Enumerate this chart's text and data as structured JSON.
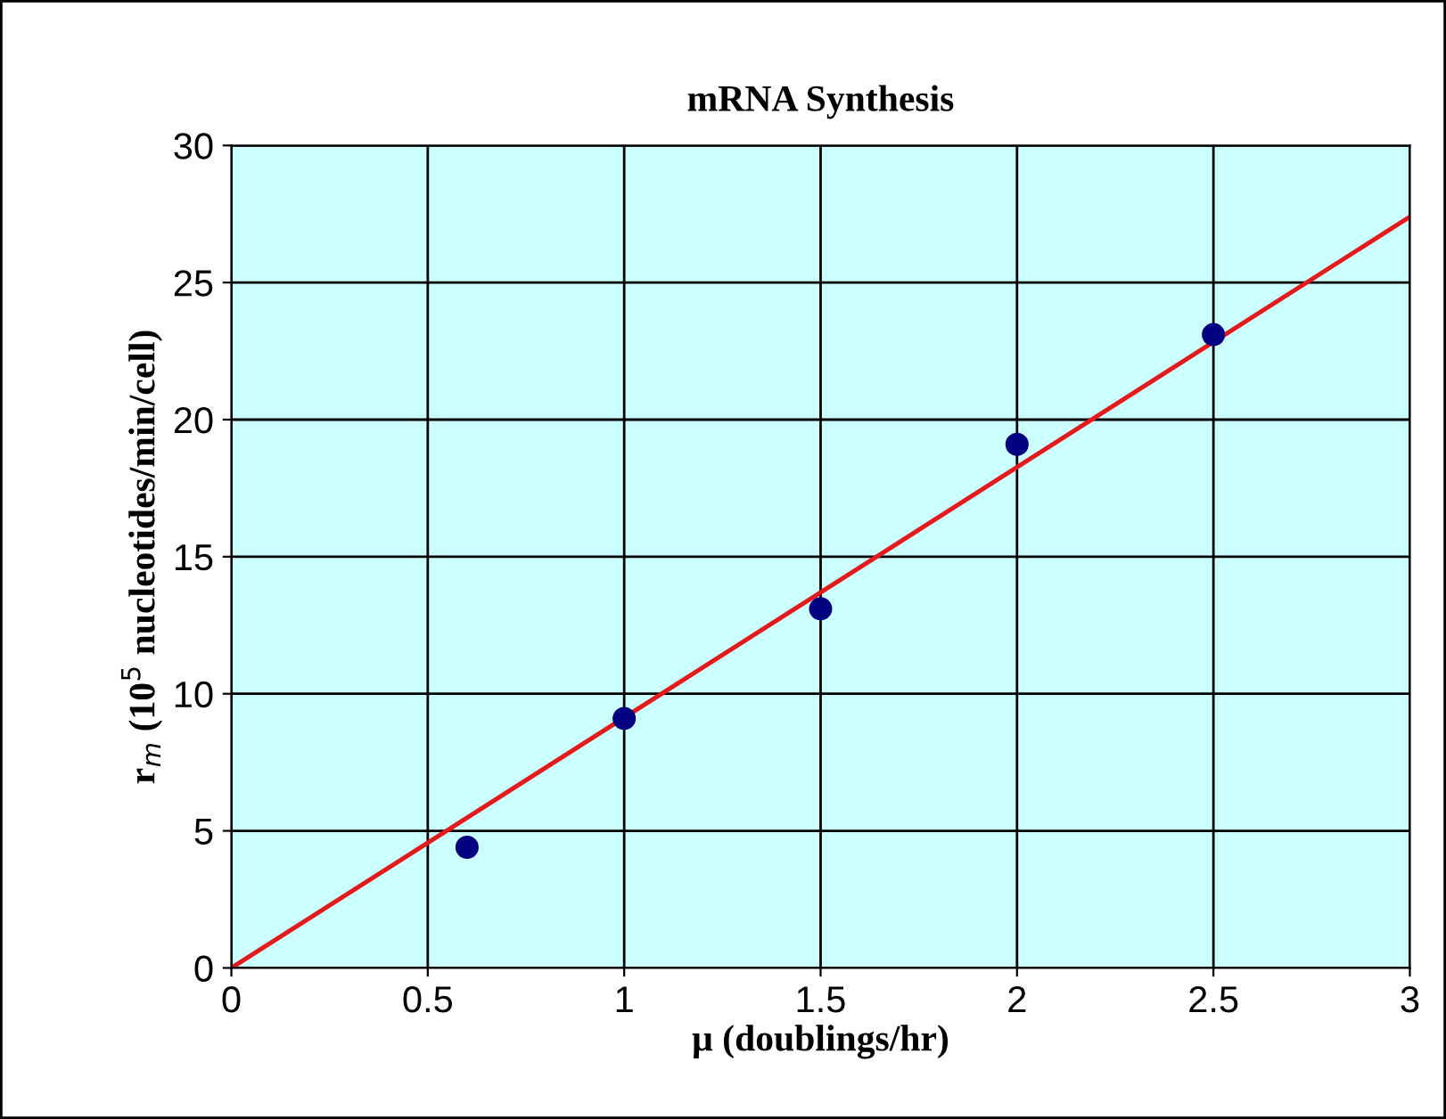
{
  "chart_data": {
    "type": "scatter",
    "title": "mRNA Synthesis",
    "xlabel": "μ (doublings/hr)",
    "ylabel": "r$_{m}$ (10$^{5}$ nucleotides/min/cell)",
    "series": [
      {
        "color": "#000080",
        "x": [
          0.6,
          1,
          1.5,
          2,
          2.5
        ],
        "values": [
          4.4,
          9.1,
          13.1,
          19.1,
          23.1
        ],
        "marker": "circle"
      },
      {
        "type": "line",
        "color": "#e41a1c",
        "x": [
          0,
          3
        ],
        "values": [
          0,
          27.4
        ],
        "marker": "none",
        "line_style": "solid"
      }
    ],
    "xlim": [
      0,
      3
    ],
    "xticks": [
      0,
      0.5,
      1,
      1.5,
      2,
      2.5,
      3
    ],
    "ylim": [
      0,
      30
    ],
    "yticks": [
      0,
      5,
      10,
      15,
      20,
      25,
      30
    ],
    "grid": true
  }
}
